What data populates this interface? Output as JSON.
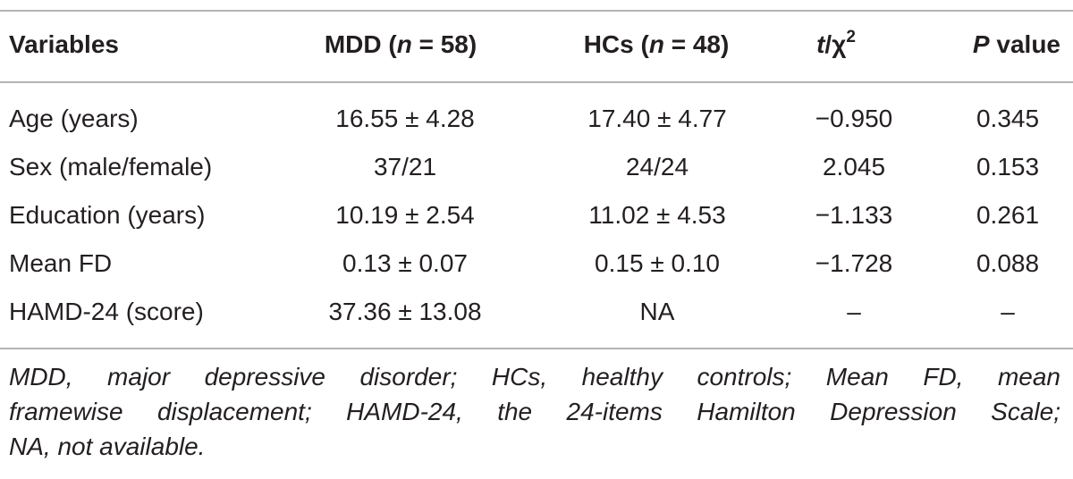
{
  "table": {
    "header": [
      [
        "Variables"
      ],
      [
        "MDD (",
        "n",
        " = 58)"
      ],
      [
        "HCs (",
        "n",
        " = 48)"
      ],
      [
        "t",
        "/χ",
        "2"
      ],
      [
        "P",
        " value"
      ]
    ],
    "rows": [
      [
        "Age (years)",
        "16.55 ± 4.28",
        "17.40 ± 4.77",
        "−0.950",
        "0.345"
      ],
      [
        "Sex (male/female)",
        "37/21",
        "24/24",
        "2.045",
        "0.153"
      ],
      [
        "Education (years)",
        "10.19 ± 2.54",
        "11.02 ± 4.53",
        "−1.133",
        "0.261"
      ],
      [
        "Mean FD",
        "0.13 ± 0.07",
        "0.15 ± 0.10",
        "−1.728",
        "0.088"
      ],
      [
        "HAMD-24 (score)",
        "37.36 ± 13.08",
        "NA",
        "–",
        "–"
      ]
    ]
  },
  "footnote": [
    "MDD, major depressive disorder; HCs, healthy controls; Mean FD, mean",
    "framewise displacement; HAMD-24, the 24-items Hamilton Depression Scale;",
    "NA, not available."
  ]
}
